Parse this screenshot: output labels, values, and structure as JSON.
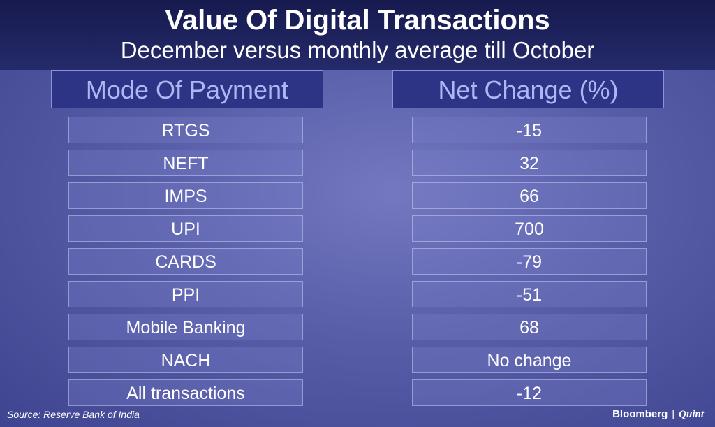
{
  "header": {
    "title": "Value Of Digital Transactions",
    "subtitle": "December versus monthly average till October"
  },
  "table": {
    "columns": [
      "Mode Of Payment",
      "Net Change (%)"
    ],
    "rows": [
      [
        "RTGS",
        "-15"
      ],
      [
        "NEFT",
        "32"
      ],
      [
        "IMPS",
        "66"
      ],
      [
        "UPI",
        "700"
      ],
      [
        "CARDS",
        "-79"
      ],
      [
        "PPI",
        "-51"
      ],
      [
        "Mobile Banking",
        "68"
      ],
      [
        "NACH",
        "No change"
      ],
      [
        "All transactions",
        "-12"
      ]
    ]
  },
  "footer": {
    "source": "Source: Reserve Bank of India",
    "brand": [
      "Bloomberg",
      "Quint"
    ]
  }
}
